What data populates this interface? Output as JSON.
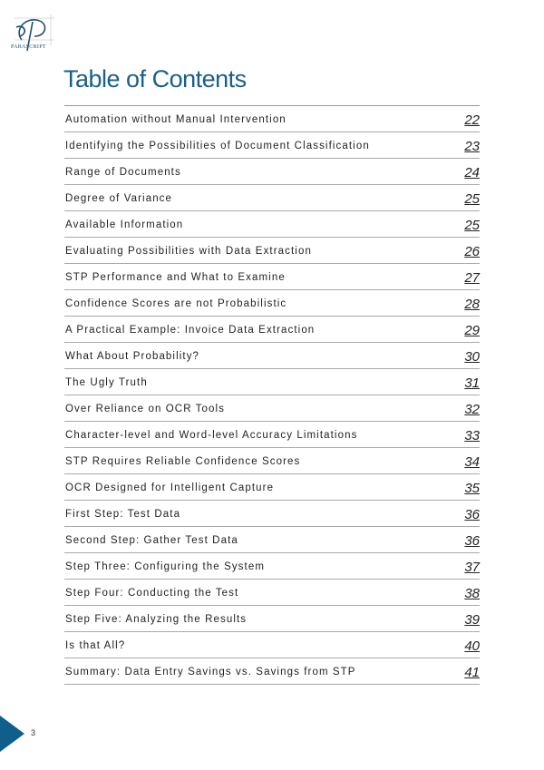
{
  "logo": {
    "brand": "PARASCRIPT"
  },
  "title": "Table of Contents",
  "entries": [
    {
      "label": "Automation without Manual Intervention",
      "page": "22"
    },
    {
      "label": "Identifying the Possibilities of Document Classification",
      "page": "23"
    },
    {
      "label": "Range of Documents",
      "page": "24"
    },
    {
      "label": "Degree of Variance",
      "page": "25"
    },
    {
      "label": "Available Information",
      "page": "25"
    },
    {
      "label": "Evaluating Possibilities with Data Extraction",
      "page": "26"
    },
    {
      "label": "STP Performance and What to Examine",
      "page": "27"
    },
    {
      "label": "Confidence Scores are not Probabilistic",
      "page": "28"
    },
    {
      "label": "A Practical Example: Invoice Data Extraction",
      "page": "29"
    },
    {
      "label": "What About Probability?",
      "page": "30"
    },
    {
      "label": "The Ugly Truth",
      "page": "31"
    },
    {
      "label": "Over Reliance on OCR Tools",
      "page": "32"
    },
    {
      "label": "Character-level and Word-level Accuracy Limitations",
      "page": "33"
    },
    {
      "label": "STP Requires Reliable Confidence Scores",
      "page": "34"
    },
    {
      "label": "OCR Designed for Intelligent Capture",
      "page": "35"
    },
    {
      "label": "First Step: Test Data",
      "page": "36"
    },
    {
      "label": "Second Step: Gather Test Data",
      "page": "36"
    },
    {
      "label": "Step Three: Configuring the System",
      "page": "37"
    },
    {
      "label": "Step Four: Conducting the Test",
      "page": "38"
    },
    {
      "label": "Step Five: Analyzing the Results",
      "page": "39"
    },
    {
      "label": "Is that All?",
      "page": "40"
    },
    {
      "label": "Summary: Data Entry Savings vs. Savings from STP",
      "page": "41"
    }
  ],
  "footer": {
    "page_number": "3",
    "accent_color": "#0f5f8c"
  }
}
